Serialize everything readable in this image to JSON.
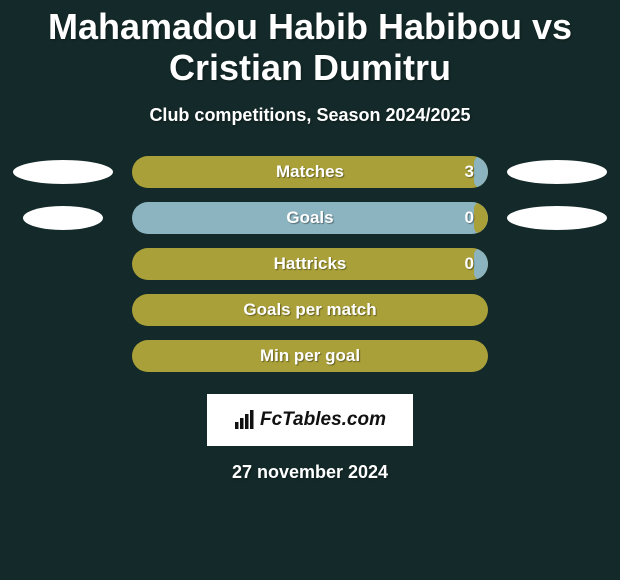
{
  "background_color": "#142929",
  "text_color": "#ffffff",
  "title": {
    "text": "Mahamadou Habib Habibou vs Cristian Dumitru",
    "fontsize": 36
  },
  "subtitle": {
    "text": "Club competitions, Season 2024/2025",
    "fontsize": 18
  },
  "bar_colors": {
    "primary": "#a9a039",
    "secondary": "#8bb4c0"
  },
  "rows": [
    {
      "label": "Matches",
      "value": "3",
      "bar_color": "primary",
      "fill_color": "secondary",
      "fill_pct": 4,
      "left_ellipse": "wide",
      "right_ellipse": "wide"
    },
    {
      "label": "Goals",
      "value": "0",
      "bar_color": "secondary",
      "fill_color": "primary",
      "fill_pct": 4,
      "left_ellipse": "narrow",
      "right_ellipse": "wide"
    },
    {
      "label": "Hattricks",
      "value": "0",
      "bar_color": "primary",
      "fill_color": "secondary",
      "fill_pct": 4,
      "left_ellipse": "none",
      "right_ellipse": "none"
    },
    {
      "label": "Goals per match",
      "value": "",
      "bar_color": "primary",
      "fill_color": "secondary",
      "fill_pct": 0,
      "left_ellipse": "none",
      "right_ellipse": "none"
    },
    {
      "label": "Min per goal",
      "value": "",
      "bar_color": "primary",
      "fill_color": "secondary",
      "fill_pct": 0,
      "left_ellipse": "none",
      "right_ellipse": "none"
    }
  ],
  "bar_style": {
    "label_fontsize": 17,
    "value_fontsize": 17,
    "label_color": "#ffffff"
  },
  "logo": {
    "text": "FcTables.com"
  },
  "footer_date": {
    "text": "27 november 2024",
    "fontsize": 18
  }
}
